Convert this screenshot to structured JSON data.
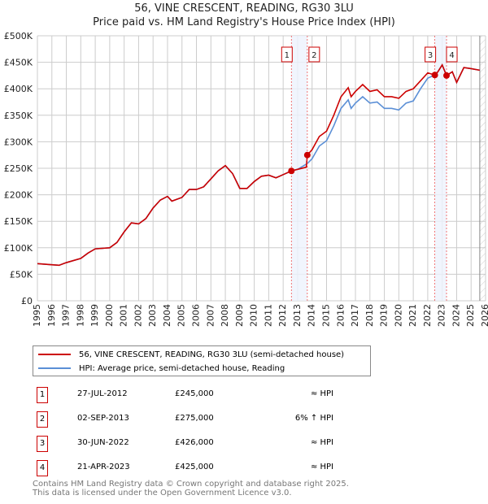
{
  "title": "56, VINE CRESCENT, READING, RG30 3LU",
  "subtitle": "Price paid vs. HM Land Registry's House Price Index (HPI)",
  "chart_data": {
    "type": "line",
    "xlim": [
      1995,
      2026
    ],
    "ylim": [
      0,
      500000
    ],
    "yticks": [
      0,
      50000,
      100000,
      150000,
      200000,
      250000,
      300000,
      350000,
      400000,
      450000,
      500000
    ],
    "ytick_labels": [
      "£0",
      "£50K",
      "£100K",
      "£150K",
      "£200K",
      "£250K",
      "£300K",
      "£350K",
      "£400K",
      "£450K",
      "£500K"
    ],
    "xticks": [
      "1995",
      "1996",
      "1997",
      "1998",
      "1999",
      "2000",
      "2001",
      "2002",
      "2003",
      "2004",
      "2005",
      "2006",
      "2007",
      "2008",
      "2009",
      "2010",
      "2011",
      "2012",
      "2013",
      "2014",
      "2015",
      "2016",
      "2017",
      "2018",
      "2019",
      "2020",
      "2021",
      "2022",
      "2023",
      "2024",
      "2025",
      "2026"
    ],
    "grid": true,
    "forecast_from": 2025.6,
    "series": [
      {
        "name": "56, VINE CRESCENT, READING, RG30 3LU (semi-detached house)",
        "color": "#cc0000",
        "x": [
          1995,
          1996,
          1996.5,
          1997,
          1998,
          1998.5,
          1999,
          2000,
          2000.5,
          2001,
          2001.5,
          2002,
          2002.5,
          2003,
          2003.5,
          2004,
          2004.3,
          2005,
          2005.5,
          2006,
          2006.5,
          2007,
          2007.5,
          2008,
          2008.5,
          2009,
          2009.5,
          2010,
          2010.5,
          2011,
          2011.5,
          2012,
          2012.57,
          2013,
          2013.6,
          2013.67,
          2014,
          2014.5,
          2015,
          2015.5,
          2016,
          2016.5,
          2016.7,
          2017,
          2017.5,
          2018,
          2018.5,
          2019,
          2019.5,
          2020,
          2020.5,
          2021,
          2021.5,
          2022,
          2022.49,
          2022.7,
          2023,
          2023.3,
          2023.7,
          2024,
          2024.5,
          2025,
          2025.6
        ],
        "y": [
          70,
          68,
          67,
          72,
          80,
          90,
          98,
          100,
          110,
          130,
          147,
          145,
          155,
          175,
          190,
          197,
          188,
          195,
          210,
          210,
          215,
          230,
          245,
          255,
          240,
          212,
          212,
          225,
          235,
          237,
          232,
          238,
          245,
          248,
          252,
          275,
          285,
          310,
          320,
          350,
          385,
          402,
          385,
          395,
          408,
          395,
          398,
          385,
          385,
          382,
          395,
          400,
          415,
          430,
          426,
          432,
          445,
          425,
          432,
          412,
          440,
          438,
          435
        ]
      },
      {
        "name": "HPI: Average price, semi-detached house, Reading",
        "color": "#5b8fd6",
        "x": [
          1995,
          1996,
          1996.5,
          1997,
          1998,
          1998.5,
          1999,
          2000,
          2000.5,
          2001,
          2001.5,
          2002,
          2002.5,
          2003,
          2003.5,
          2004,
          2004.3,
          2005,
          2005.5,
          2006,
          2006.5,
          2007,
          2007.5,
          2008,
          2008.5,
          2009,
          2009.5,
          2010,
          2010.5,
          2011,
          2011.5,
          2012,
          2012.57,
          2013,
          2013.67,
          2014,
          2014.5,
          2015,
          2015.5,
          2016,
          2016.5,
          2016.7,
          2017,
          2017.5,
          2018,
          2018.5,
          2019,
          2019.5,
          2020,
          2020.5,
          2021,
          2021.5,
          2022,
          2022.49,
          2022.7,
          2023,
          2023.3,
          2023.7,
          2024,
          2024.5,
          2025,
          2025.6
        ],
        "y": [
          70,
          68,
          67,
          72,
          80,
          90,
          98,
          100,
          110,
          130,
          147,
          145,
          155,
          175,
          190,
          197,
          188,
          195,
          210,
          210,
          215,
          230,
          245,
          255,
          240,
          212,
          212,
          225,
          235,
          237,
          232,
          238,
          245,
          248,
          259,
          268,
          292,
          302,
          330,
          363,
          379,
          363,
          373,
          385,
          373,
          375,
          363,
          363,
          360,
          373,
          377,
          400,
          420,
          426,
          432,
          445,
          425,
          432,
          412,
          440,
          438,
          435
        ]
      }
    ],
    "transactions": [
      {
        "id": "1",
        "x": 2012.57,
        "y": 245
      },
      {
        "id": "2",
        "x": 2013.67,
        "y": 275
      },
      {
        "id": "3",
        "x": 2022.49,
        "y": 426
      },
      {
        "id": "4",
        "x": 2023.3,
        "y": 425
      }
    ]
  },
  "legend": {
    "red": "56, VINE CRESCENT, READING, RG30 3LU (semi-detached house)",
    "blue": "HPI: Average price, semi-detached house, Reading"
  },
  "table": [
    {
      "id": "1",
      "date": "27-JUL-2012",
      "price": "£245,000",
      "hpi": "≈ HPI"
    },
    {
      "id": "2",
      "date": "02-SEP-2013",
      "price": "£275,000",
      "hpi": "6% ↑ HPI"
    },
    {
      "id": "3",
      "date": "30-JUN-2022",
      "price": "£426,000",
      "hpi": "≈ HPI"
    },
    {
      "id": "4",
      "date": "21-APR-2023",
      "price": "£425,000",
      "hpi": "≈ HPI"
    }
  ],
  "footer": {
    "line1": "Contains HM Land Registry data © Crown copyright and database right 2025.",
    "line2": "This data is licensed under the Open Government Licence v3.0."
  }
}
